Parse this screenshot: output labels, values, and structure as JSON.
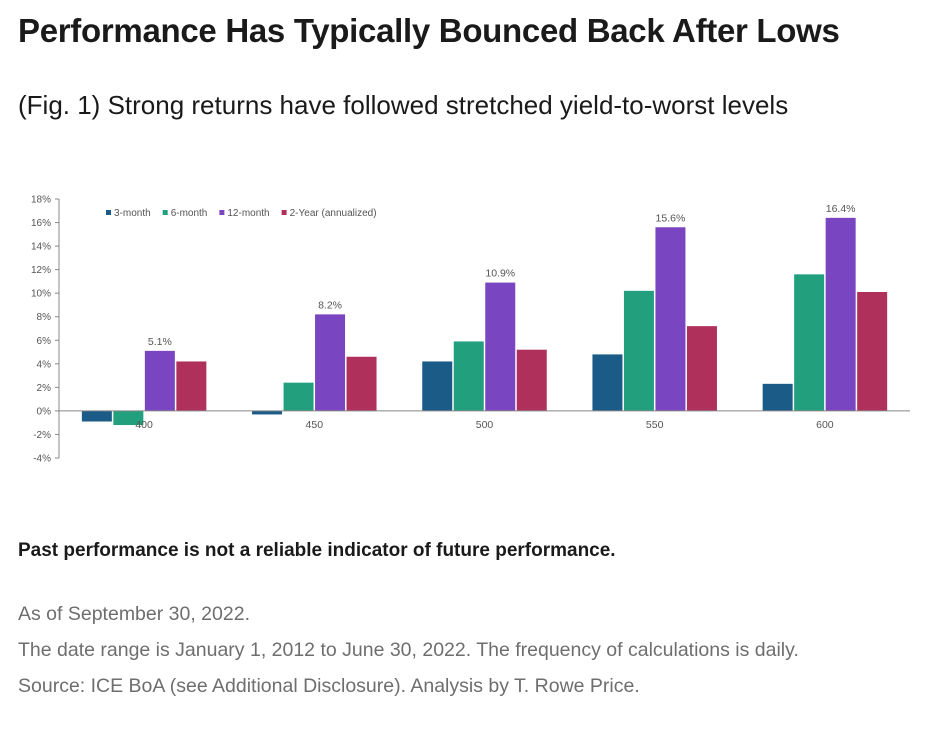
{
  "header": {
    "title": "Performance Has Typically Bounced Back After Lows",
    "subtitle": "(Fig. 1) Strong returns have followed stretched yield-to-worst levels"
  },
  "footer": {
    "disclaimer": "Past performance is not a reliable indicator of future performance.",
    "as_of": "As of September 30, 2022.",
    "date_range": "The date range is January 1, 2012 to June 30, 2022. The frequency of calculations is daily.",
    "source": "Source: ICE BoA (see Additional Disclosure). Analysis by T. Rowe Price."
  },
  "chart_data": {
    "type": "bar",
    "title": "",
    "xlabel": "",
    "ylabel": "",
    "categories": [
      "400",
      "450",
      "500",
      "550",
      "600"
    ],
    "ylim": [
      -4,
      18
    ],
    "yticks": [
      -4,
      -2,
      0,
      2,
      4,
      6,
      8,
      10,
      12,
      14,
      16,
      18
    ],
    "ytick_labels": [
      "-4%",
      "-2%",
      "0%",
      "2%",
      "4%",
      "6%",
      "8%",
      "10%",
      "12%",
      "14%",
      "16%",
      "18%"
    ],
    "grid": false,
    "legend_position": "top-left",
    "series": [
      {
        "name": "3-month",
        "color": "#1b5b87",
        "values": [
          -0.9,
          -0.3,
          4.2,
          4.8,
          2.3
        ]
      },
      {
        "name": "6-month",
        "color": "#22a07e",
        "values": [
          -1.2,
          2.4,
          5.9,
          10.2,
          11.6
        ]
      },
      {
        "name": "12-month",
        "color": "#7a45c0",
        "values": [
          5.1,
          8.2,
          10.9,
          15.6,
          16.4
        ],
        "data_labels": [
          "5.1%",
          "8.2%",
          "10.9%",
          "15.6%",
          "16.4%"
        ]
      },
      {
        "name": "2-Year (annualized)",
        "color": "#b0305c",
        "values": [
          4.2,
          4.6,
          5.2,
          7.2,
          10.1
        ]
      }
    ]
  }
}
